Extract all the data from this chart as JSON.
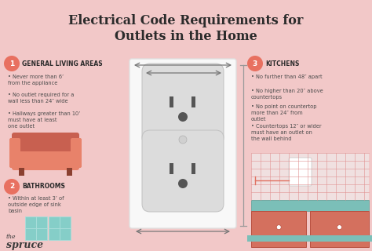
{
  "bg_color": "#f2c8c8",
  "title_line1": "Electrical Code Requirements for",
  "title_line2": "Outlets in the Home",
  "title_color": "#2b2b2b",
  "title_fontsize": 11.5,
  "section1_num": "1",
  "section1_head": "GENERAL LIVING AREAS",
  "section1_bullets": [
    "Never more than 6’\nfrom the appliance",
    "No outlet required for a\nwall less than 24″ wide",
    "Hallways greater than 10’\nmust have at least\none outlet"
  ],
  "section2_num": "2",
  "section2_head": "BATHROOMS",
  "section2_bullets": [
    "Within at least 3’ of\noutside edge of sink\nbasin"
  ],
  "section3_num": "3",
  "section3_head": "KITCHENS",
  "section3_bullets": [
    "No further than 48″ apart",
    "No higher than 20″ above\ncountertops",
    "No point on countertop\nmore than 24″ from\noutlet",
    "Countertops 12″ or wider\nmust have an outlet on\nthe wall behind"
  ],
  "num_circle_color": "#e87060",
  "head_color": "#2b2b2b",
  "bullet_color": "#4a4a4a",
  "outlet_plate_color": "#f8f8f8",
  "outlet_plate_border": "#e0e0e0",
  "sofa_color": "#e8826a",
  "sofa_dark": "#c86050",
  "sofa_leg": "#8b4030",
  "bath_color": "#85cec8",
  "bath_line": "#a8deda",
  "logo_color": "#3a3a3a",
  "logo_text1": "the",
  "logo_text2": "spruce",
  "arrow_color": "#777777",
  "vline_color": "#999999",
  "kitchen_grid_color": "#e09090",
  "kitchen_cab_color": "#d4705e",
  "kitchen_cab_dark": "#b85040",
  "kitchen_counter_color": "#7bbfb8",
  "kitchen_counter_dark": "#5a9e98",
  "meas_line_color": "#e07060"
}
